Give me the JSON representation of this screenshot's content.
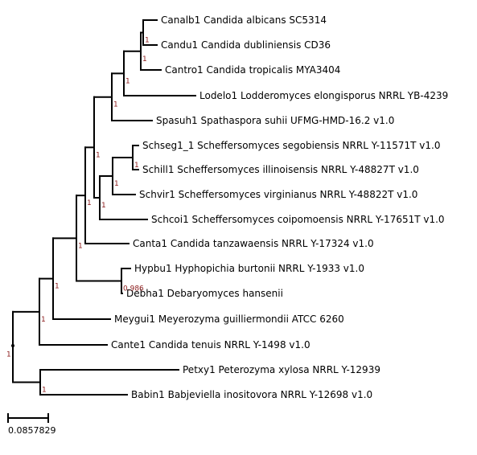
{
  "colors": {
    "branch": "#000000",
    "support": "#8b1a1a",
    "label": "#000000"
  },
  "tree": {
    "leaves": [
      "Canalb1 Candida albicans SC5314",
      "Candu1 Candida dubliniensis CD36",
      "Cantro1 Candida tropicalis MYA3404",
      "Lodelo1 Lodderomyces elongisporus NRRL YB-4239",
      "Spasuh1 Spathaspora suhii UFMG-HMD-16.2 v1.0",
      "Schseg1_1 Scheffersomyces segobiensis NRRL Y-11571T v1.0",
      "Schill1 Scheffersomyces illinoisensis NRRL Y-48827T v1.0",
      "Schvir1 Scheffersomyces virginianus NRRL Y-48822T v1.0",
      "Schcoi1 Scheffersomyces coipomoensis NRRL Y-17651T v1.0",
      "Canta1 Candida tanzawaensis NRRL Y-17324  v1.0",
      "Hypbu1 Hyphopichia burtonii NRRL Y-1933 v1.0",
      "Debha1 Debaryomyces hansenii",
      "Meygui1 Meyerozyma guilliermondii ATCC 6260",
      "Cante1 Candida tenuis NRRL Y-1498 v1.0",
      "Petxy1 Peterozyma xylosa NRRL Y-12939",
      "Babin1 Babjeviella inositovora NRRL Y-12698 v1.0"
    ],
    "supports": [
      "1",
      "1",
      "1",
      "1",
      "1",
      "1",
      "1",
      "1",
      "1",
      "0.986",
      "1",
      "1",
      "1",
      "1",
      "1"
    ]
  },
  "scale": {
    "label": "0.0857829"
  }
}
